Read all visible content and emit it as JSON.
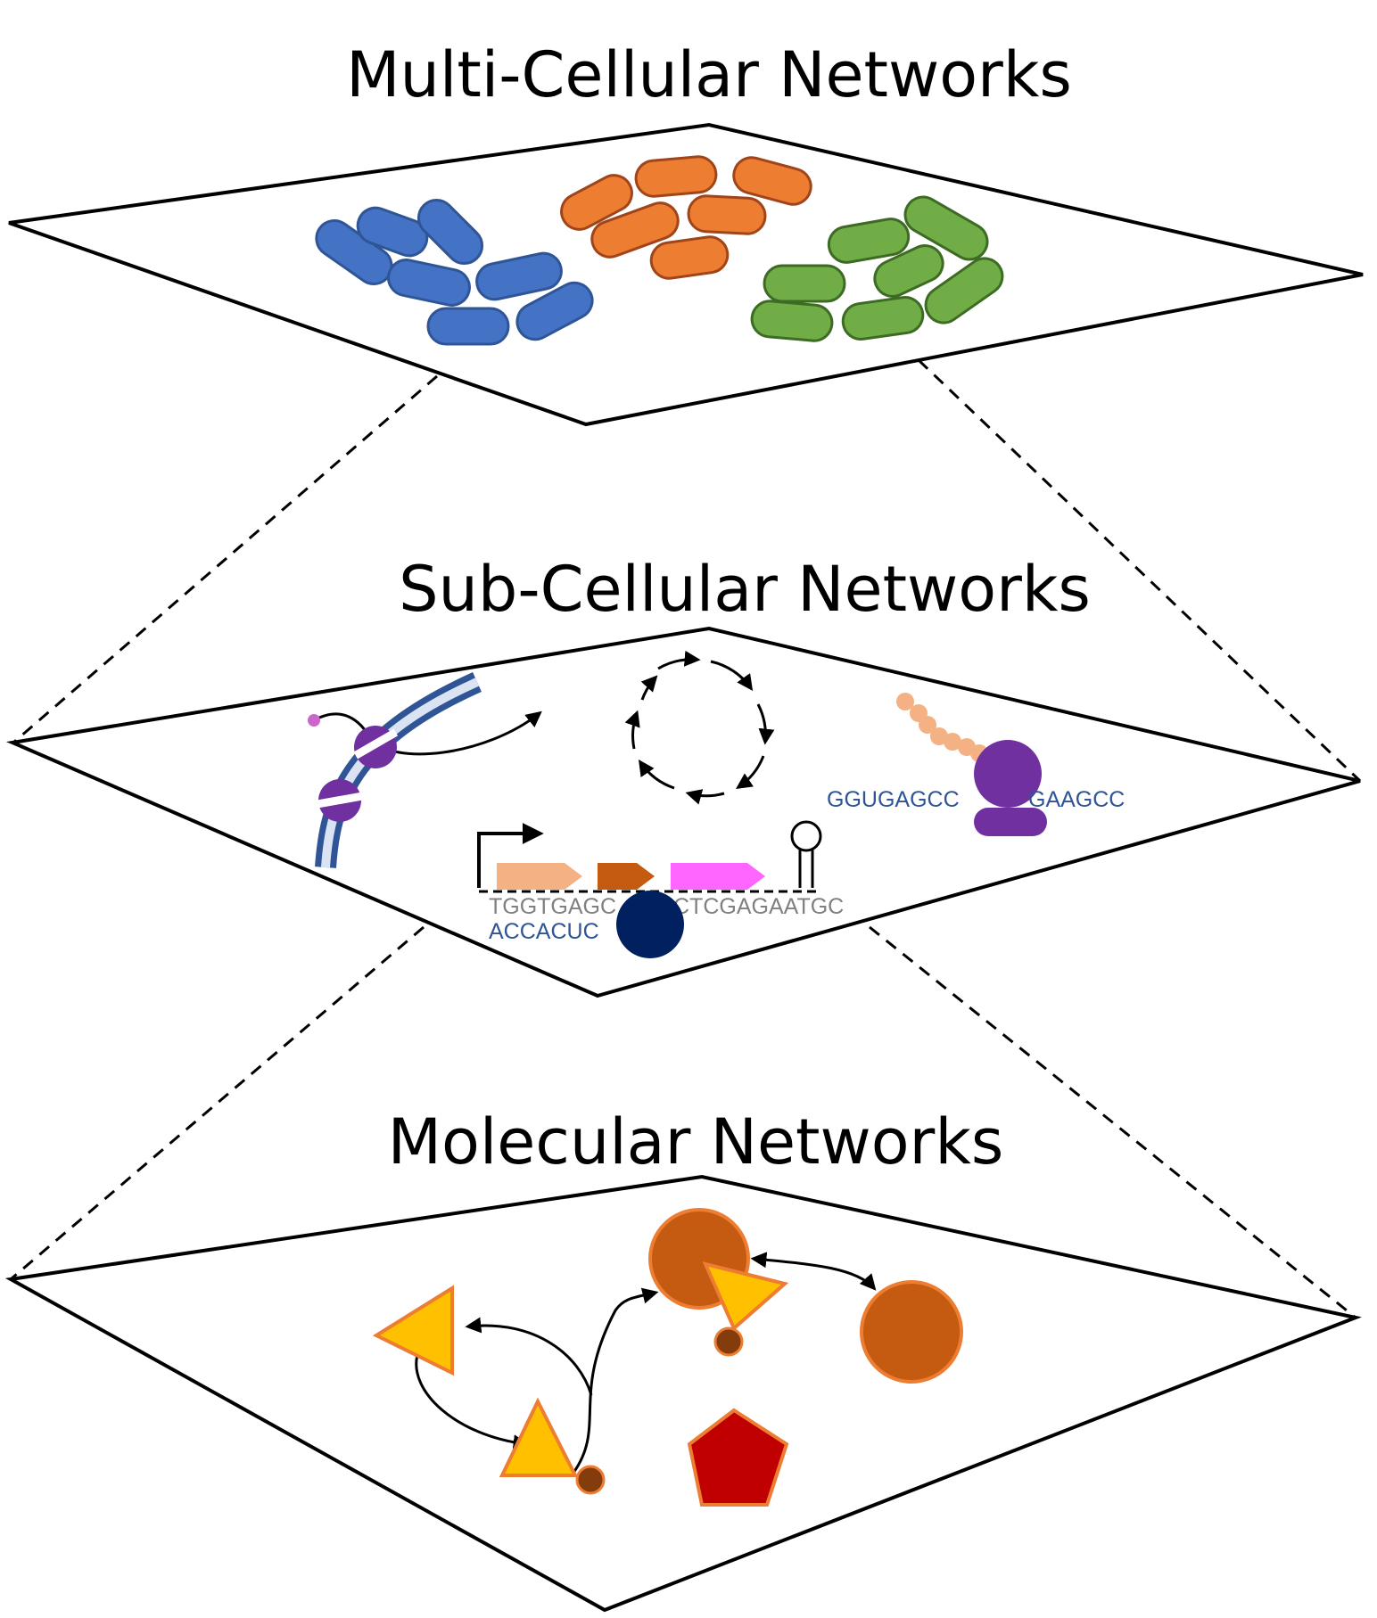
{
  "levels": {
    "multi_cellular": {
      "title": "Multi-Cellular Networks"
    },
    "sub_cellular": {
      "title": "Sub-Cellular Networks"
    },
    "molecular": {
      "title": "Molecular Networks"
    }
  },
  "sequences": {
    "rna": "GGUGAGCC",
    "rna_tail": "GAAGCC",
    "dna_top": "TGGTGAGC",
    "dna_top_tail": "CTCGAGAATGC",
    "dna_bottom": "ACCACUC"
  },
  "colors": {
    "bacteria_blue": "#4472c4",
    "bacteria_orange": "#ed7d31",
    "bacteria_green": "#70ad47",
    "protein_purple": "#7030a0",
    "dna_strand": "#2f5597",
    "dna_light": "#dae3f3",
    "polymerase_navy": "#002060",
    "gene_peach": "#f4b183",
    "gene_brown": "#c55a11",
    "gene_pink": "#ff66ff",
    "molecule_yellow": "#ffc000",
    "molecule_brown": "#c55a11",
    "molecule_red": "#c00000",
    "rna_text": "#2f5597",
    "dna_text": "#808080"
  }
}
